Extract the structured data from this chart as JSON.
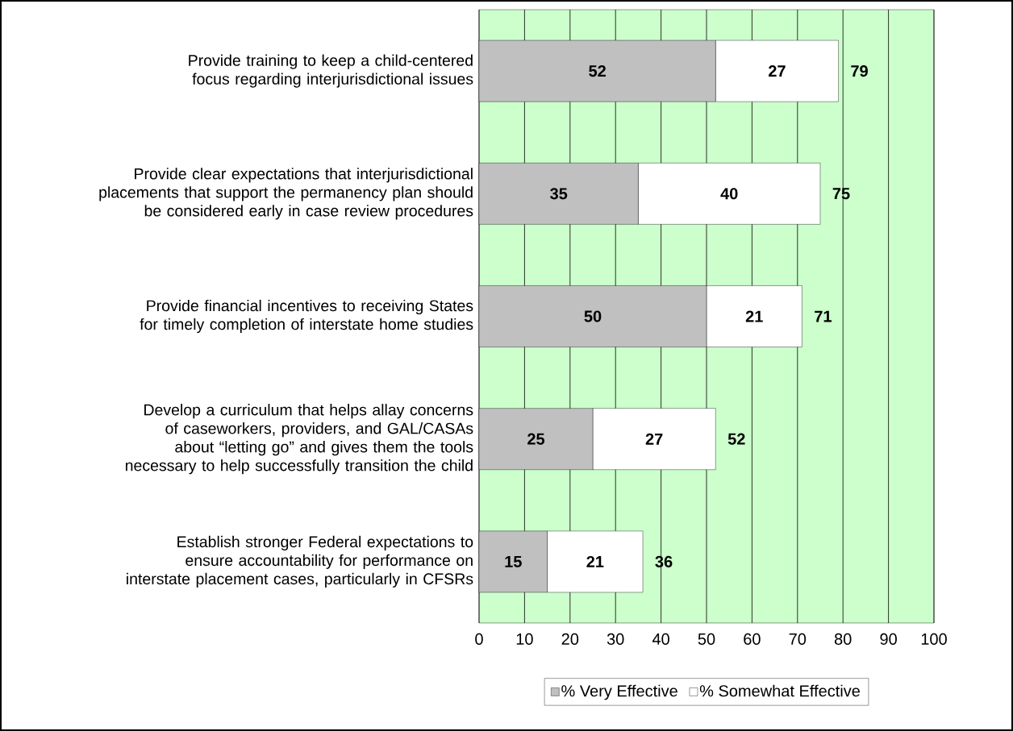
{
  "chart_data": {
    "type": "bar",
    "orientation": "horizontal",
    "stacked": true,
    "categories": [
      "Provide training to keep a child-centered focus regarding interjurisdictional issues",
      "Provide clear expectations that interjurisdictional placements that support the permanency plan should be considered early in case review procedures",
      "Provide financial incentives to receiving States for timely completion of interstate home studies",
      "Develop a curriculum that helps allay concerns of caseworkers, providers, and GAL/CASAs about “letting go” and gives them the tools necessary to help successfully transition the child",
      "Establish stronger Federal expectations to ensure accountability for performance on interstate placement cases, particularly in CFSRs"
    ],
    "series": [
      {
        "name": "% Very Effective",
        "color": "#c0c0c0",
        "values": [
          52,
          35,
          50,
          25,
          15
        ]
      },
      {
        "name": "% Somewhat Effective",
        "color": "#ffffff",
        "values": [
          27,
          40,
          21,
          27,
          21
        ]
      }
    ],
    "totals": [
      "79",
      "75",
      "71",
      "52",
      "36"
    ],
    "data_labels": true,
    "xlim": [
      0,
      100
    ],
    "xticks": [
      0,
      10,
      20,
      30,
      40,
      50,
      60,
      70,
      80,
      90,
      100
    ],
    "grid": "x",
    "legend": "bottom"
  }
}
